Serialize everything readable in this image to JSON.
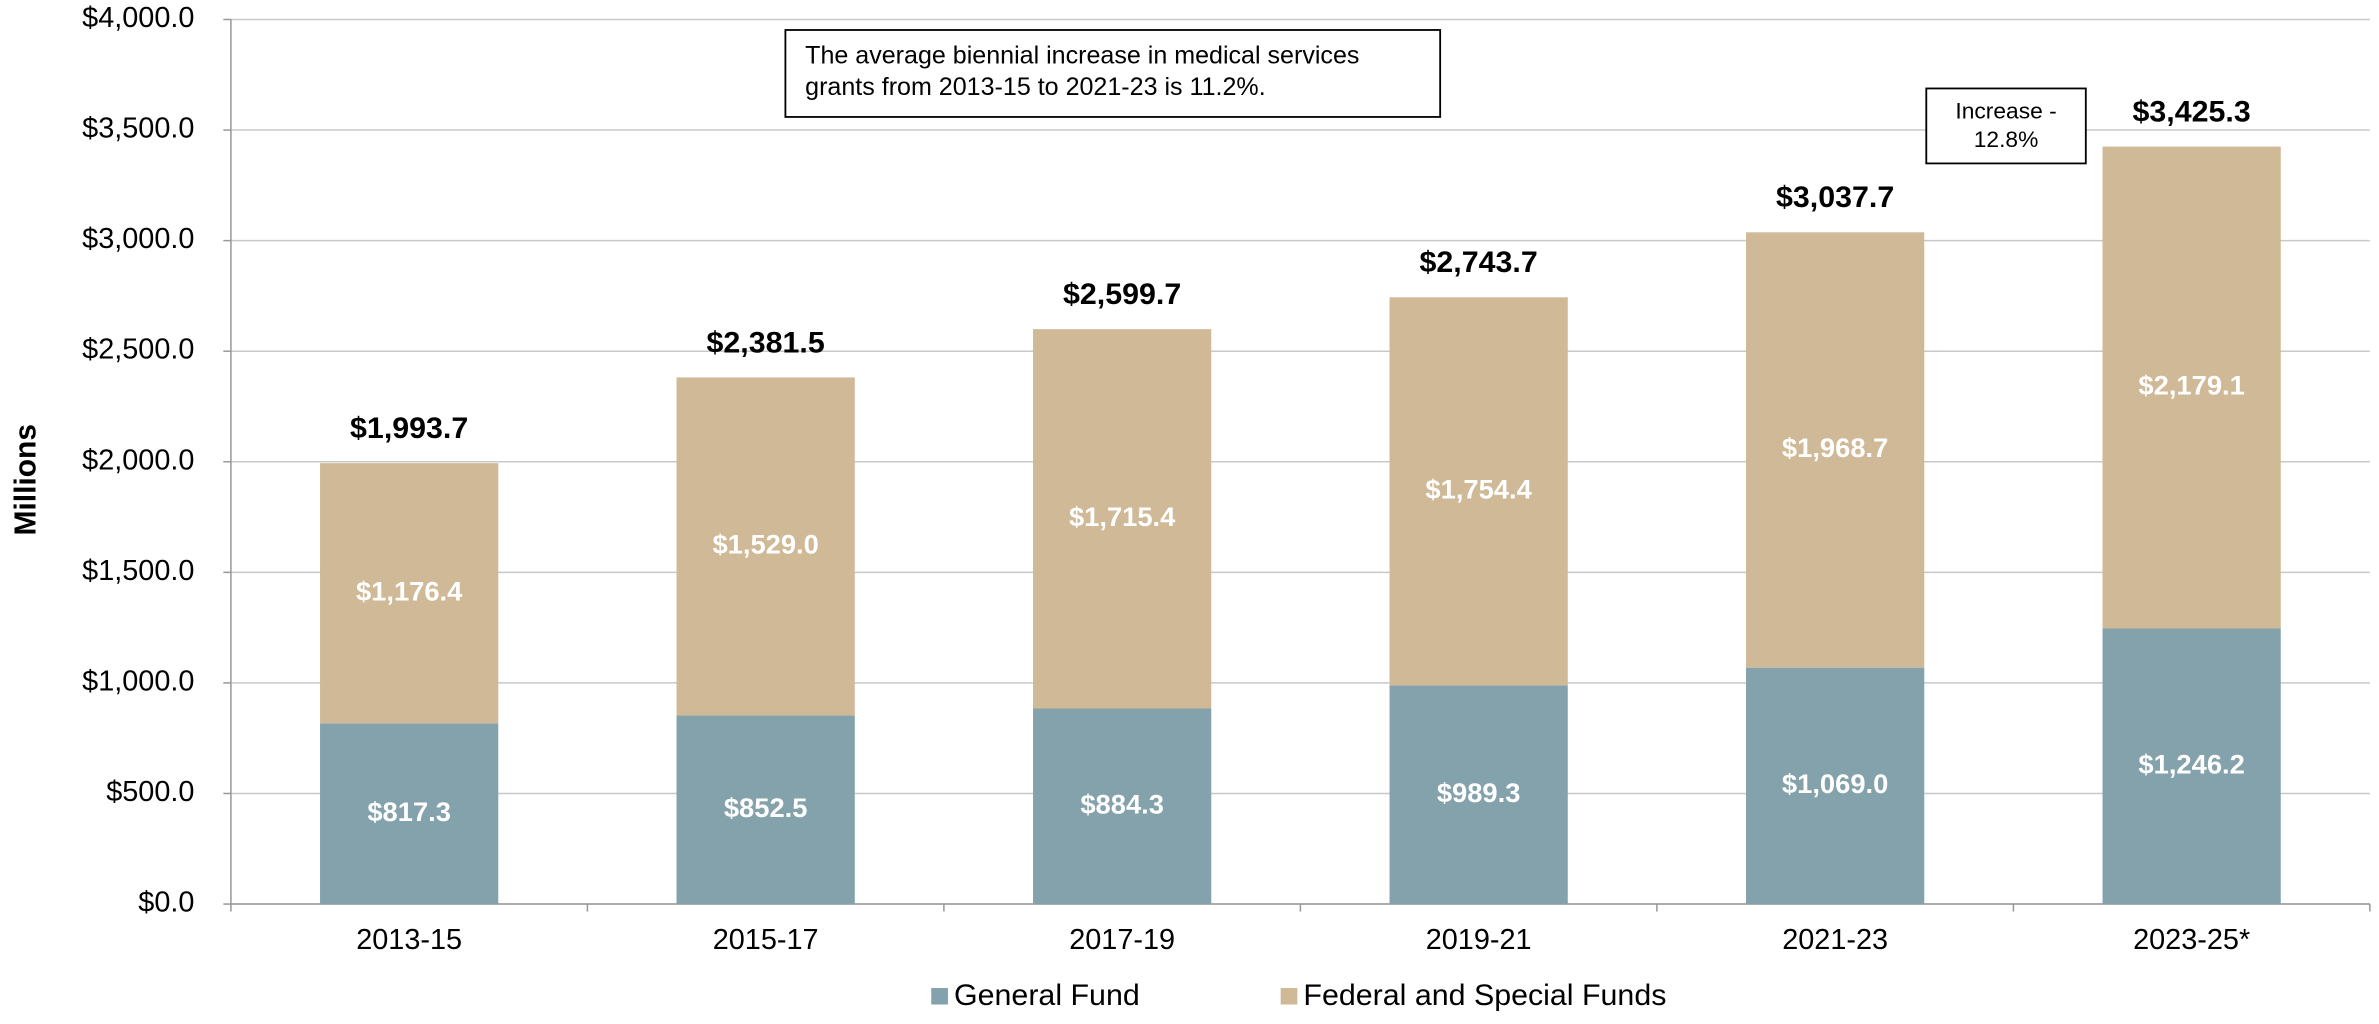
{
  "chart_data": {
    "type": "stacked_bar",
    "y_axis_label": "Millions",
    "categories": [
      "2013-15",
      "2015-17",
      "2017-19",
      "2019-21",
      "2021-23",
      "2023-25*"
    ],
    "series": [
      {
        "name": "General Fund",
        "color": "#84a2ab",
        "values": [
          817.3,
          852.5,
          884.3,
          989.3,
          1069.0,
          1246.2
        ],
        "value_labels": [
          "$817.3",
          "$852.5",
          "$884.3",
          "$989.3",
          "$1,069.0",
          "$1,246.2"
        ]
      },
      {
        "name": "Federal and Special Funds",
        "color": "#cfb997",
        "values": [
          1176.4,
          1529.0,
          1715.4,
          1754.4,
          1968.7,
          2179.1
        ],
        "value_labels": [
          "$1,176.4",
          "$1,529.0",
          "$1,715.4",
          "$1,754.4",
          "$1,968.7",
          "$2,179.1"
        ]
      }
    ],
    "totals": [
      1993.7,
      2381.5,
      2599.7,
      2743.7,
      3037.7,
      3425.3
    ],
    "total_labels": [
      "$1,993.7",
      "$2,381.5",
      "$2,599.7",
      "$2,743.7",
      "$3,037.7",
      "$3,425.3"
    ],
    "ylim": [
      0,
      4000
    ],
    "yticks": [
      {
        "value": 0,
        "label": "$0.0"
      },
      {
        "value": 500,
        "label": "$500.0"
      },
      {
        "value": 1000,
        "label": "$1,000.0"
      },
      {
        "value": 1500,
        "label": "$1,500.0"
      },
      {
        "value": 2000,
        "label": "$2,000.0"
      },
      {
        "value": 2500,
        "label": "$2,500.0"
      },
      {
        "value": 3000,
        "label": "$3,000.0"
      },
      {
        "value": 3500,
        "label": "$3,500.0"
      },
      {
        "value": 4000,
        "label": "$4,000.0"
      }
    ],
    "grid": true,
    "legend": "bottom",
    "annotations": [
      {
        "lines": [
          "The average biennial increase in medical services",
          "grants from 2013-15 to 2021-23 is 11.2%."
        ]
      },
      {
        "lines": [
          "Increase -",
          "12.8%"
        ]
      }
    ]
  }
}
